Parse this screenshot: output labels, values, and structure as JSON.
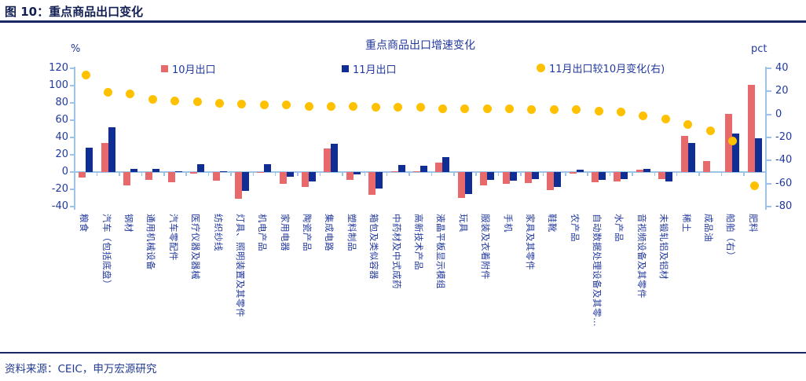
{
  "figure": {
    "title": "图 10：重点商品出口变化",
    "source": "资料来源：CEIC，申万宏源研究"
  },
  "chart_data": {
    "type": "bar",
    "title": "重点商品出口增速变化",
    "left_axis": {
      "label": "%",
      "range": [
        -40,
        120
      ],
      "ticks": [
        120,
        100,
        80,
        60,
        40,
        20,
        0,
        -20,
        -40
      ]
    },
    "right_axis": {
      "label": "pct",
      "range": [
        -80,
        40
      ],
      "ticks": [
        40,
        20,
        0,
        -20,
        -40,
        -60,
        -80
      ]
    },
    "legend": [
      {
        "label": "10月出口",
        "type": "bar",
        "color": "#E8696B"
      },
      {
        "label": "11月出口",
        "type": "bar",
        "color": "#0F2D92"
      },
      {
        "label": "11月出口较10月变化(右)",
        "type": "dot",
        "color": "#FFC000"
      }
    ],
    "grid": false,
    "categories": [
      "粮食",
      "汽车（包括底盘）",
      "钢材",
      "通用机械设备",
      "汽车零配件",
      "医疗仪器及器械",
      "纺织纱线",
      "灯具、照明装置及其零件",
      "机电产品",
      "家用电器",
      "陶瓷产品",
      "集成电路",
      "塑料制品",
      "箱包及类似容器",
      "中药材及中式成药",
      "高新技术产品",
      "液晶平板显示模组",
      "玩具",
      "服装及衣着附件",
      "手机",
      "家具及其零件",
      "鞋靴",
      "农产品",
      "自动数据处理设备及其零…",
      "水产品",
      "音视频设备及其零件",
      "未锻轧铝及铝材",
      "稀土",
      "成品油",
      "船舶（右）",
      "肥料"
    ],
    "series": [
      {
        "name": "10月出口",
        "axis": "left",
        "color": "#E8696B",
        "values": [
          -6,
          34,
          -15,
          -9,
          -12,
          -2,
          -10,
          -31,
          -1,
          -14,
          -17,
          27,
          -9,
          -26,
          1,
          1,
          11,
          -30,
          -15,
          -14,
          -13,
          -21,
          -2,
          -12,
          -11,
          3,
          -8,
          42,
          13,
          67,
          101
        ]
      },
      {
        "name": "11月出口",
        "axis": "left",
        "color": "#0F2D92",
        "values": [
          28,
          52,
          4,
          4,
          1,
          9,
          0.5,
          -22,
          9,
          -5,
          -11,
          33,
          -3,
          -19,
          8,
          7,
          17,
          -25,
          -9,
          -10,
          -8,
          -17,
          3,
          -9,
          -8,
          4,
          -11,
          34,
          0,
          45,
          39
        ]
      },
      {
        "name": "11月出口较10月变化(右)",
        "axis": "right",
        "color": "#FFC000",
        "values": [
          34,
          19,
          18,
          13,
          12,
          11,
          10,
          9,
          8,
          8,
          7,
          7,
          7,
          6,
          6,
          6,
          5,
          5,
          5,
          5,
          4,
          4,
          4,
          3,
          2,
          -1,
          -4,
          -9,
          -14,
          -23,
          -62
        ]
      }
    ],
    "colors": {
      "axis": "#9DC3E6",
      "text": "#22399E",
      "rule": "#1A2864"
    }
  }
}
